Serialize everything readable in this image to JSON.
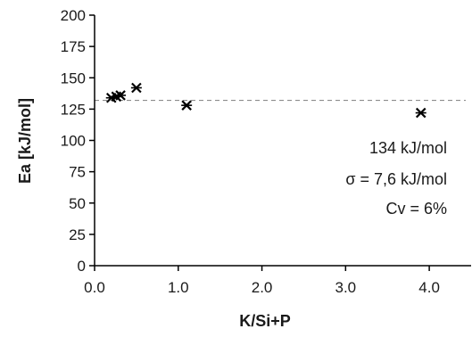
{
  "chart_data": {
    "type": "scatter",
    "title": "",
    "xlabel": "K/Si+P",
    "ylabel": "Ea [kJ/mol]",
    "xlim": [
      0.0,
      4.5
    ],
    "ylim": [
      0,
      200
    ],
    "xticks": [
      "0.0",
      "1.0",
      "2.0",
      "3.0",
      "4.0"
    ],
    "xtick_values": [
      0,
      1,
      2,
      3,
      4
    ],
    "yticks": [
      "0",
      "25",
      "50",
      "75",
      "100",
      "125",
      "150",
      "175",
      "200"
    ],
    "ytick_values": [
      0,
      25,
      50,
      75,
      100,
      125,
      150,
      175,
      200
    ],
    "grid": false,
    "legend": "none",
    "marker": "asterisk",
    "marker_color": "#000000",
    "series": [
      {
        "x": [
          0.2,
          0.26,
          0.31,
          0.5,
          1.1,
          3.9
        ],
        "y": [
          134,
          135,
          136,
          142,
          128,
          122
        ]
      }
    ],
    "reference_line": {
      "y": 132,
      "style": "dashed",
      "color": "#8c8c8c"
    },
    "annotations": [
      "134 kJ/mol",
      "σ = 7,6 kJ/mol",
      "Cv = 6%"
    ]
  }
}
